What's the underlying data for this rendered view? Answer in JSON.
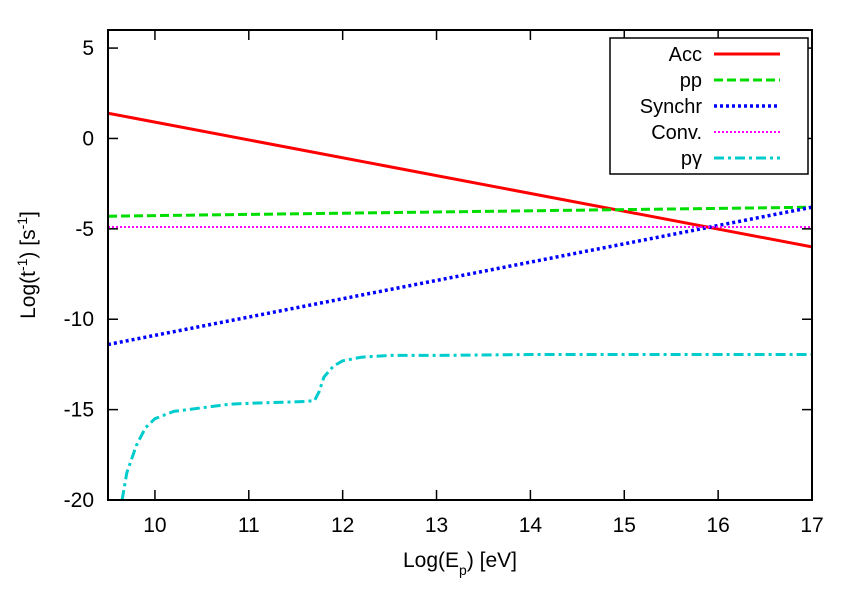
{
  "chart_data": {
    "type": "line",
    "title": "",
    "xlabel": "Log(E_p) [eV]",
    "ylabel": "Log(t^-1) [s^-1]",
    "xlim": [
      9.5,
      17
    ],
    "ylim": [
      -20,
      6
    ],
    "x_ticks": [
      10,
      11,
      12,
      13,
      14,
      15,
      16,
      17
    ],
    "y_ticks": [
      5,
      0,
      -5,
      -10,
      -15,
      -20
    ],
    "grid": false,
    "legend_position": "top-right",
    "series": [
      {
        "name": "Acc",
        "color": "#ff0000",
        "dash": "solid",
        "x": [
          9.5,
          17
        ],
        "y": [
          1.4,
          -6.0
        ]
      },
      {
        "name": "pp",
        "color": "#00dd00",
        "dash": "dashed",
        "x": [
          9.5,
          17
        ],
        "y": [
          -4.3,
          -3.8
        ]
      },
      {
        "name": "Synchr",
        "color": "#0000ff",
        "dash": "dotted",
        "x": [
          9.5,
          17
        ],
        "y": [
          -11.4,
          -3.8
        ]
      },
      {
        "name": "Conv.",
        "color": "#ff00ff",
        "dash": "fine-dotted",
        "x": [
          9.5,
          17
        ],
        "y": [
          -4.9,
          -4.9
        ]
      },
      {
        "name": "pγ",
        "color": "#00cccc",
        "dash": "dash-dot",
        "x": [
          9.65,
          9.7,
          9.8,
          9.9,
          10.0,
          10.2,
          10.5,
          10.8,
          11.0,
          11.3,
          11.6,
          11.7,
          11.75,
          11.8,
          11.9,
          12.0,
          12.2,
          12.5,
          13.0,
          14.0,
          15.0,
          16.0,
          17.0
        ],
        "y": [
          -20.0,
          -18.5,
          -17.0,
          -16.0,
          -15.5,
          -15.1,
          -14.9,
          -14.7,
          -14.65,
          -14.6,
          -14.55,
          -14.5,
          -14.0,
          -13.2,
          -12.6,
          -12.3,
          -12.1,
          -12.0,
          -12.0,
          -11.95,
          -11.95,
          -11.95,
          -11.95
        ]
      }
    ]
  }
}
